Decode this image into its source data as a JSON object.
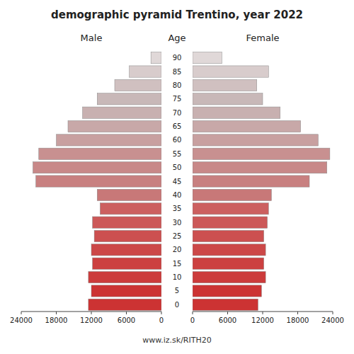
{
  "chart_data": {
    "type": "pyramid",
    "title": "demographic pyramid Trentino, year 2022",
    "ylabel": "Age",
    "annotations": [
      "www.iz.sk/RITH20"
    ],
    "orientation": "horizontal",
    "categories": [
      0,
      5,
      10,
      15,
      20,
      25,
      30,
      35,
      40,
      45,
      50,
      55,
      60,
      65,
      70,
      75,
      80,
      85,
      90
    ],
    "series": [
      {
        "name": "Male",
        "values": [
          12500,
          12000,
          12500,
          11800,
          12000,
          11500,
          11800,
          10500,
          11000,
          21500,
          22000,
          21000,
          18000,
          16000,
          13500,
          11000,
          8000,
          5500,
          1800
        ]
      },
      {
        "name": "Female",
        "values": [
          11200,
          11800,
          12500,
          12200,
          12500,
          12200,
          12800,
          13000,
          13500,
          20000,
          23000,
          23500,
          21500,
          18500,
          15000,
          12000,
          11000,
          13000,
          5000
        ]
      }
    ],
    "colors": [
      "#cc3333",
      "#cc3333",
      "#cc3b3b",
      "#cc4040",
      "#cc4848",
      "#cc5050",
      "#cc5858",
      "#cc6060",
      "#c87878",
      "#c88080",
      "#c88888",
      "#c89090",
      "#c8a0a0",
      "#c8a8a8",
      "#c8b0b0",
      "#c8b8b8",
      "#d0c0c0",
      "#d8cccc",
      "#e0d8d8"
    ],
    "xlim": [
      0,
      24000
    ],
    "xticks": [
      0,
      6000,
      12000,
      18000,
      24000
    ]
  }
}
